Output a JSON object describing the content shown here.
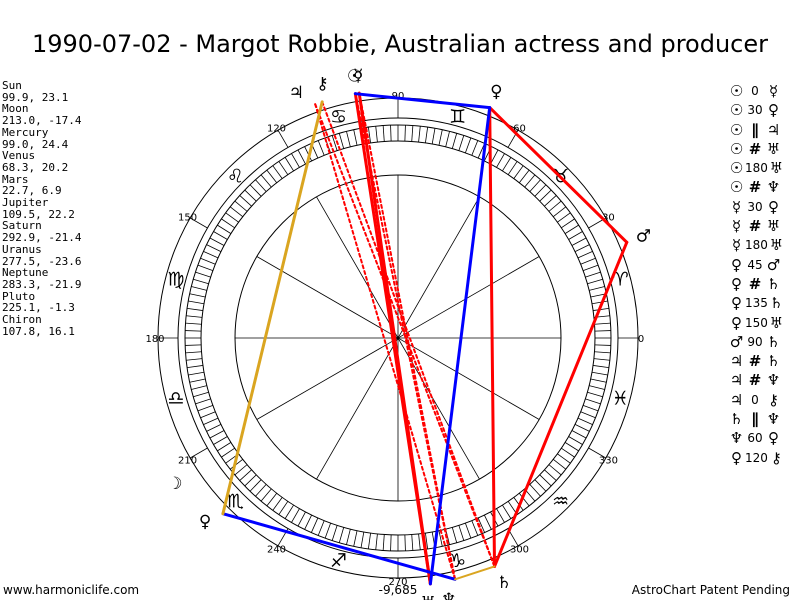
{
  "title": "1990-07-02 - Margot Robbie, Australian actress and producer",
  "planets": [
    {
      "name": "Sun",
      "coords": "99.9, 23.1",
      "lon": 99.9,
      "glyph": "☉",
      "color": "#000000"
    },
    {
      "name": "Moon",
      "coords": "213.0, -17.4",
      "lon": 213.0,
      "glyph": "☽",
      "color": "#000000"
    },
    {
      "name": "Mercury",
      "coords": "99.0, 24.4",
      "lon": 99.0,
      "glyph": "☿",
      "color": "#000000"
    },
    {
      "name": "Venus",
      "coords": "68.3, 20.2",
      "lon": 68.3,
      "glyph": "♀",
      "color": "#000000"
    },
    {
      "name": "Mars",
      "coords": "22.7, 6.9",
      "lon": 22.7,
      "glyph": "♂",
      "color": "#000000"
    },
    {
      "name": "Jupiter",
      "coords": "109.5, 22.2",
      "lon": 109.5,
      "glyph": "♃",
      "color": "#000000"
    },
    {
      "name": "Saturn",
      "coords": "292.9, -21.4",
      "lon": 292.9,
      "glyph": "♄",
      "color": "#000000"
    },
    {
      "name": "Uranus",
      "coords": "277.5, -23.6",
      "lon": 277.5,
      "glyph": "♅",
      "color": "#000000"
    },
    {
      "name": "Neptune",
      "coords": "283.3, -21.9",
      "lon": 283.3,
      "glyph": "♆",
      "color": "#000000"
    },
    {
      "name": "Pluto",
      "coords": "225.1, -1.3",
      "lon": 225.1,
      "glyph": "♀",
      "color": "#000000"
    },
    {
      "name": "Chiron",
      "coords": "107.8, 16.1",
      "lon": 107.8,
      "glyph": "⚷",
      "color": "#000000"
    }
  ],
  "aspects": [
    {
      "p1": "☉",
      "aspect": "0",
      "p2": "☿",
      "sym": false
    },
    {
      "p1": "☉",
      "aspect": "30",
      "p2": "♀",
      "sym": false
    },
    {
      "p1": "☉",
      "aspect": "∥",
      "p2": "♃",
      "sym": true
    },
    {
      "p1": "☉",
      "aspect": "#",
      "p2": "♅",
      "sym": true
    },
    {
      "p1": "☉",
      "aspect": "180",
      "p2": "♅",
      "sym": false
    },
    {
      "p1": "☉",
      "aspect": "#",
      "p2": "♆",
      "sym": true
    },
    {
      "p1": "☿",
      "aspect": "30",
      "p2": "♀",
      "sym": false
    },
    {
      "p1": "☿",
      "aspect": "#",
      "p2": "♅",
      "sym": true
    },
    {
      "p1": "☿",
      "aspect": "180",
      "p2": "♅",
      "sym": false
    },
    {
      "p1": "♀",
      "aspect": "45",
      "p2": "♂",
      "sym": false
    },
    {
      "p1": "♀",
      "aspect": "#",
      "p2": "♄",
      "sym": true
    },
    {
      "p1": "♀",
      "aspect": "135",
      "p2": "♄",
      "sym": false
    },
    {
      "p1": "♀",
      "aspect": "150",
      "p2": "♅",
      "sym": false
    },
    {
      "p1": "♂",
      "aspect": "90",
      "p2": "♄",
      "sym": false
    },
    {
      "p1": "♃",
      "aspect": "#",
      "p2": "♄",
      "sym": true
    },
    {
      "p1": "♃",
      "aspect": "#",
      "p2": "♆",
      "sym": true
    },
    {
      "p1": "♃",
      "aspect": "0",
      "p2": "⚷",
      "sym": false
    },
    {
      "p1": "♄",
      "aspect": "∥",
      "p2": "♆",
      "sym": true
    },
    {
      "p1": "♆",
      "aspect": "60",
      "p2": "♀",
      "sym": false
    },
    {
      "p1": "♀",
      "aspect": "120",
      "p2": "⚷",
      "sym": false
    }
  ],
  "wheel": {
    "degree_labels": [
      "0",
      "30",
      "60",
      "90",
      "120",
      "150",
      "180",
      "210",
      "240",
      "270",
      "300",
      "330"
    ],
    "bottom_value": "-9,685",
    "signs": [
      "♈",
      "♉",
      "♊",
      "♋",
      "♌",
      "♍",
      "♎",
      "♏",
      "♐",
      "♑",
      "♒",
      "♓"
    ],
    "outer_glyphs": [
      {
        "glyph": "♃",
        "lon": 112.5
      },
      {
        "glyph": "⚷",
        "lon": 106.5
      },
      {
        "glyph": "☉",
        "lon": 99.4
      },
      {
        "glyph": "☿",
        "lon": 98.6
      },
      {
        "glyph": "♀",
        "lon": 68.3
      },
      {
        "glyph": "♂",
        "lon": 22.7
      },
      {
        "glyph": "☽",
        "lon": 213.0
      },
      {
        "glyph": "♀",
        "lon": 223.5
      },
      {
        "glyph": "♅",
        "lon": 276.5
      },
      {
        "glyph": "♆",
        "lon": 281.0
      },
      {
        "glyph": "♄",
        "lon": 293.5
      }
    ],
    "aspect_lines": [
      {
        "from": 99.9,
        "to": 277.5,
        "color": "#ff0000",
        "style": "solid",
        "width": 3
      },
      {
        "from": 99.0,
        "to": 277.5,
        "color": "#ff0000",
        "style": "solid",
        "width": 3
      },
      {
        "from": 109.5,
        "to": 292.9,
        "color": "#ff0000",
        "style": "dotted",
        "width": 2
      },
      {
        "from": 109.5,
        "to": 283.3,
        "color": "#ff0000",
        "style": "dotted",
        "width": 2
      },
      {
        "from": 99.9,
        "to": 283.3,
        "color": "#ff0000",
        "style": "dotted",
        "width": 2
      },
      {
        "from": 99.0,
        "to": 283.3,
        "color": "#ff0000",
        "style": "dotted",
        "width": 2
      },
      {
        "from": 107.8,
        "to": 292.9,
        "color": "#ff0000",
        "style": "dotted",
        "width": 2
      },
      {
        "from": 68.3,
        "to": 292.9,
        "color": "#ff0000",
        "style": "solid",
        "width": 3
      },
      {
        "from": 68.3,
        "to": 22.7,
        "color": "#ff0000",
        "style": "solid",
        "width": 3
      },
      {
        "from": 22.7,
        "to": 292.9,
        "color": "#ff0000",
        "style": "solid",
        "width": 3
      },
      {
        "from": 99.9,
        "to": 68.3,
        "color": "#0000ff",
        "style": "solid",
        "width": 3
      },
      {
        "from": 68.3,
        "to": 277.5,
        "color": "#0000ff",
        "style": "solid",
        "width": 3
      },
      {
        "from": 225.1,
        "to": 283.3,
        "color": "#0000ff",
        "style": "solid",
        "width": 3
      },
      {
        "from": 225.1,
        "to": 107.8,
        "color": "#daa520",
        "style": "solid",
        "width": 3
      },
      {
        "from": 292.9,
        "to": 283.3,
        "color": "#daa520",
        "style": "solid",
        "width": 2
      }
    ]
  },
  "footer": {
    "left": "www.harmoniclife.com",
    "right": "AstroChart Patent Pending"
  }
}
